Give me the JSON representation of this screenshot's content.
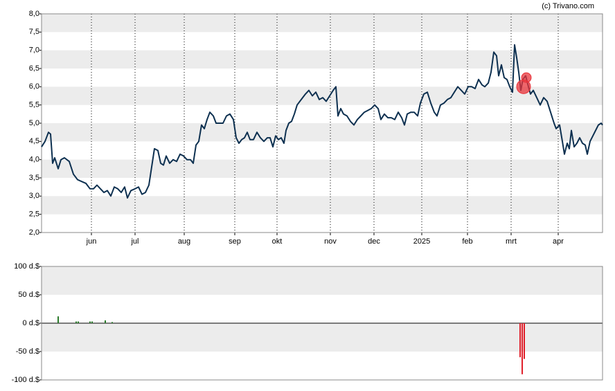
{
  "credit": "(c) Trivano.com",
  "chart_data": [
    {
      "type": "line",
      "color": "#0d3050",
      "xlim": [
        0,
        810
      ],
      "xticks": [
        {
          "value": 72,
          "label": "jun"
        },
        {
          "value": 135,
          "label": "jul"
        },
        {
          "value": 206,
          "label": "aug"
        },
        {
          "value": 279,
          "label": "sep"
        },
        {
          "value": 340,
          "label": "okt"
        },
        {
          "value": 417,
          "label": "nov"
        },
        {
          "value": 480,
          "label": "dec"
        },
        {
          "value": 549,
          "label": "2025"
        },
        {
          "value": 615,
          "label": "feb"
        },
        {
          "value": 678,
          "label": "mrt"
        },
        {
          "value": 746,
          "label": "apr"
        }
      ],
      "ylim": [
        2,
        8
      ],
      "yticks": [
        {
          "value": 2,
          "label": "2,0"
        },
        {
          "value": 2.5,
          "label": "2,5"
        },
        {
          "value": 3,
          "label": "3,0"
        },
        {
          "value": 3.5,
          "label": "3,5"
        },
        {
          "value": 4,
          "label": "4,0"
        },
        {
          "value": 4.5,
          "label": "4,5"
        },
        {
          "value": 5,
          "label": "5,0"
        },
        {
          "value": 5.5,
          "label": "5,5"
        },
        {
          "value": 6,
          "label": "6,0"
        },
        {
          "value": 6.5,
          "label": "6,5"
        },
        {
          "value": 7,
          "label": "7,0"
        },
        {
          "value": 7.5,
          "label": "7,5"
        },
        {
          "value": 8,
          "label": "8,0"
        }
      ],
      "bands": true,
      "xgrid": "dotted",
      "x": [
        0,
        5,
        10,
        13,
        16,
        19,
        24,
        28,
        33,
        40,
        46,
        52,
        58,
        64,
        70,
        75,
        80,
        85,
        90,
        95,
        100,
        105,
        110,
        115,
        120,
        124,
        129,
        135,
        140,
        145,
        150,
        155,
        159,
        163,
        168,
        172,
        176,
        180,
        185,
        190,
        195,
        200,
        205,
        210,
        215,
        219,
        223,
        227,
        231,
        235,
        239,
        243,
        248,
        252,
        257,
        262,
        267,
        272,
        277,
        281,
        285,
        289,
        293,
        297,
        301,
        306,
        311,
        316,
        321,
        326,
        330,
        334,
        338,
        342,
        346,
        350,
        353,
        357,
        361,
        365,
        369,
        373,
        377,
        381,
        386,
        391,
        396,
        401,
        406,
        411,
        416,
        421,
        425,
        428,
        432,
        436,
        441,
        446,
        451,
        456,
        461,
        466,
        471,
        476,
        481,
        486,
        490,
        495,
        500,
        505,
        510,
        515,
        520,
        524,
        528,
        533,
        538,
        543,
        547,
        552,
        557,
        562,
        567,
        571,
        576,
        581,
        586,
        591,
        596,
        601,
        606,
        611,
        616,
        621,
        626,
        631,
        636,
        640,
        645,
        649,
        653,
        657,
        660,
        664,
        668,
        672,
        676,
        680,
        683,
        686,
        689,
        692,
        695,
        699,
        703,
        706,
        710,
        715,
        720,
        725,
        730,
        735,
        740,
        743,
        748,
        752,
        755,
        759,
        762,
        765,
        769,
        773,
        777,
        781,
        785,
        788,
        792,
        796,
        800,
        804,
        808,
        810
      ],
      "values": [
        4.35,
        4.5,
        4.75,
        4.7,
        3.9,
        4.05,
        3.75,
        4.0,
        4.05,
        3.95,
        3.6,
        3.45,
        3.4,
        3.35,
        3.2,
        3.2,
        3.3,
        3.2,
        3.1,
        3.15,
        3.0,
        3.25,
        3.2,
        3.1,
        3.25,
        2.95,
        3.15,
        3.2,
        3.25,
        3.05,
        3.1,
        3.3,
        3.8,
        4.3,
        4.25,
        3.9,
        3.85,
        4.1,
        3.9,
        4.0,
        3.95,
        4.15,
        4.1,
        4.0,
        4.0,
        3.9,
        4.4,
        4.5,
        4.95,
        4.85,
        5.1,
        5.3,
        5.2,
        5.0,
        5.0,
        5.0,
        5.2,
        5.25,
        5.1,
        4.6,
        4.45,
        4.55,
        4.6,
        4.75,
        4.55,
        4.55,
        4.75,
        4.6,
        4.5,
        4.6,
        4.6,
        4.35,
        4.65,
        4.55,
        4.6,
        4.45,
        4.8,
        5.0,
        5.05,
        5.25,
        5.5,
        5.6,
        5.7,
        5.8,
        5.9,
        5.75,
        5.85,
        5.65,
        5.7,
        5.6,
        5.75,
        5.9,
        6.0,
        5.2,
        5.4,
        5.25,
        5.2,
        5.05,
        4.95,
        5.1,
        5.2,
        5.3,
        5.35,
        5.4,
        5.5,
        5.4,
        5.1,
        5.25,
        5.15,
        5.15,
        5.1,
        5.3,
        5.15,
        4.95,
        5.25,
        5.3,
        5.3,
        5.2,
        5.55,
        5.8,
        5.85,
        5.55,
        5.3,
        5.2,
        5.5,
        5.55,
        5.65,
        5.7,
        5.85,
        6.0,
        5.9,
        5.8,
        6.0,
        6.0,
        5.95,
        6.2,
        6.05,
        6.0,
        6.1,
        6.4,
        6.95,
        6.85,
        6.3,
        6.6,
        6.25,
        6.2,
        6.0,
        5.85,
        7.15,
        6.8,
        6.4,
        5.9,
        6.2,
        6.3,
        6.0,
        5.8,
        5.9,
        5.7,
        5.5,
        5.7,
        5.6,
        5.3,
        5.0,
        4.85,
        4.95,
        4.5,
        4.15,
        4.45,
        4.3,
        4.8,
        4.35,
        4.45,
        4.6,
        4.45,
        4.4,
        4.15,
        4.5,
        4.65,
        4.8,
        4.95,
        5.0,
        4.95
      ],
      "markers": {
        "color": "#e8333a",
        "x": [
          696,
          700
        ],
        "y": [
          6.0,
          6.25
        ]
      }
    },
    {
      "type": "bar",
      "color_positive": "#2a7a2a",
      "color_negative": "#e01f2a",
      "xlim": [
        0,
        810
      ],
      "ylim": [
        -100,
        100
      ],
      "yticks": [
        {
          "value": -100,
          "label": "-100 d.$"
        },
        {
          "value": -50,
          "label": "-50 d.$"
        },
        {
          "value": 0,
          "label": "0 d.$"
        },
        {
          "value": 50,
          "label": "50 d.$"
        },
        {
          "value": 100,
          "label": "100 d.$"
        }
      ],
      "bands": true,
      "x": [
        24,
        50,
        53,
        70,
        73,
        92,
        102,
        691,
        694,
        697
      ],
      "values": [
        12,
        3,
        3,
        3,
        3,
        5,
        2,
        -60,
        -90,
        -63
      ]
    }
  ]
}
